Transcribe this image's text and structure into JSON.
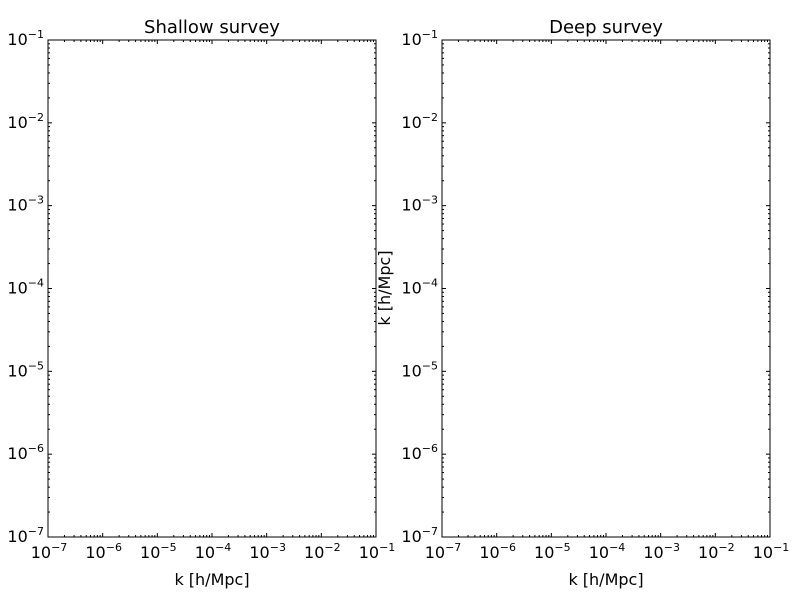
{
  "chart_data": [
    {
      "type": "scatter",
      "title": "Shallow survey",
      "xlabel": "k [h/Mpc]",
      "ylabel": "",
      "xscale": "log",
      "yscale": "log",
      "xlim": [
        1e-07,
        0.1
      ],
      "ylim": [
        1e-07,
        0.1
      ],
      "x_tick_exponents": [
        -7,
        -6,
        -5,
        -4,
        -3,
        -2,
        -1
      ],
      "y_tick_exponents": [
        -7,
        -6,
        -5,
        -4,
        -3,
        -2,
        -1
      ],
      "grid": false,
      "series": []
    },
    {
      "type": "scatter",
      "title": "Deep survey",
      "xlabel": "k [h/Mpc]",
      "ylabel": "k [h/Mpc]",
      "xscale": "log",
      "yscale": "log",
      "xlim": [
        1e-07,
        0.1
      ],
      "ylim": [
        1e-07,
        0.1
      ],
      "x_tick_exponents": [
        -7,
        -6,
        -5,
        -4,
        -3,
        -2,
        -1
      ],
      "y_tick_exponents": [
        -7,
        -6,
        -5,
        -4,
        -3,
        -2,
        -1
      ],
      "grid": false,
      "series": []
    }
  ],
  "tick_base": "10"
}
